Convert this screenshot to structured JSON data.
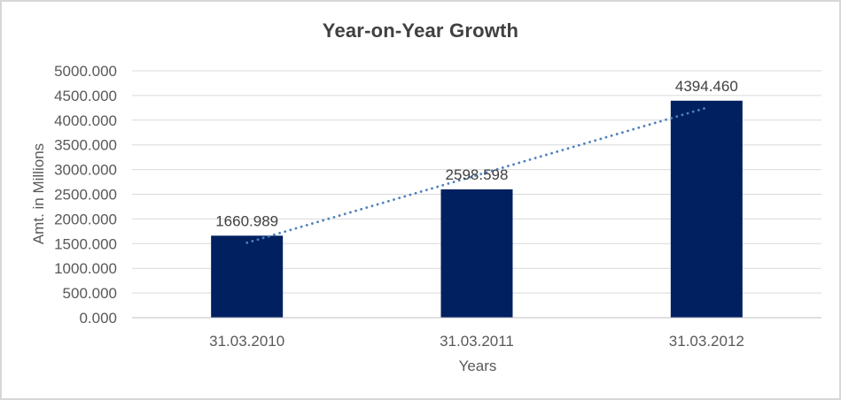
{
  "window": {
    "background": "#FFFFFF",
    "border_color": "#D7D7D7"
  },
  "chart_data": {
    "type": "bar",
    "title": "Year-on-Year Growth",
    "xlabel": "Years",
    "ylabel": "Amt. in Millions",
    "categories": [
      "31.03.2010",
      "31.03.2011",
      "31.03.2012"
    ],
    "values": [
      1660.989,
      2598.598,
      4394.46
    ],
    "data_labels": [
      "1660.989",
      "2598.598",
      "4394.460"
    ],
    "ylim": [
      0,
      5000
    ],
    "ytick_step": 500,
    "ytick_labels": [
      "0.000",
      "500.000",
      "1000.000",
      "1500.000",
      "2000.000",
      "2500.000",
      "3000.000",
      "3500.000",
      "4000.000",
      "4500.000",
      "5000.000"
    ],
    "grid": true,
    "legend": "none",
    "trendline": {
      "type": "linear",
      "style": "dotted",
      "color": "#4F81BD"
    },
    "colors": {
      "bar": "#002060",
      "gridline": "#D9D9D9",
      "axis_line": "#BFBFBF",
      "title_text": "#404040",
      "data_label_text": "#404040",
      "tick_text": "#595959",
      "axis_title_text": "#595959"
    }
  }
}
